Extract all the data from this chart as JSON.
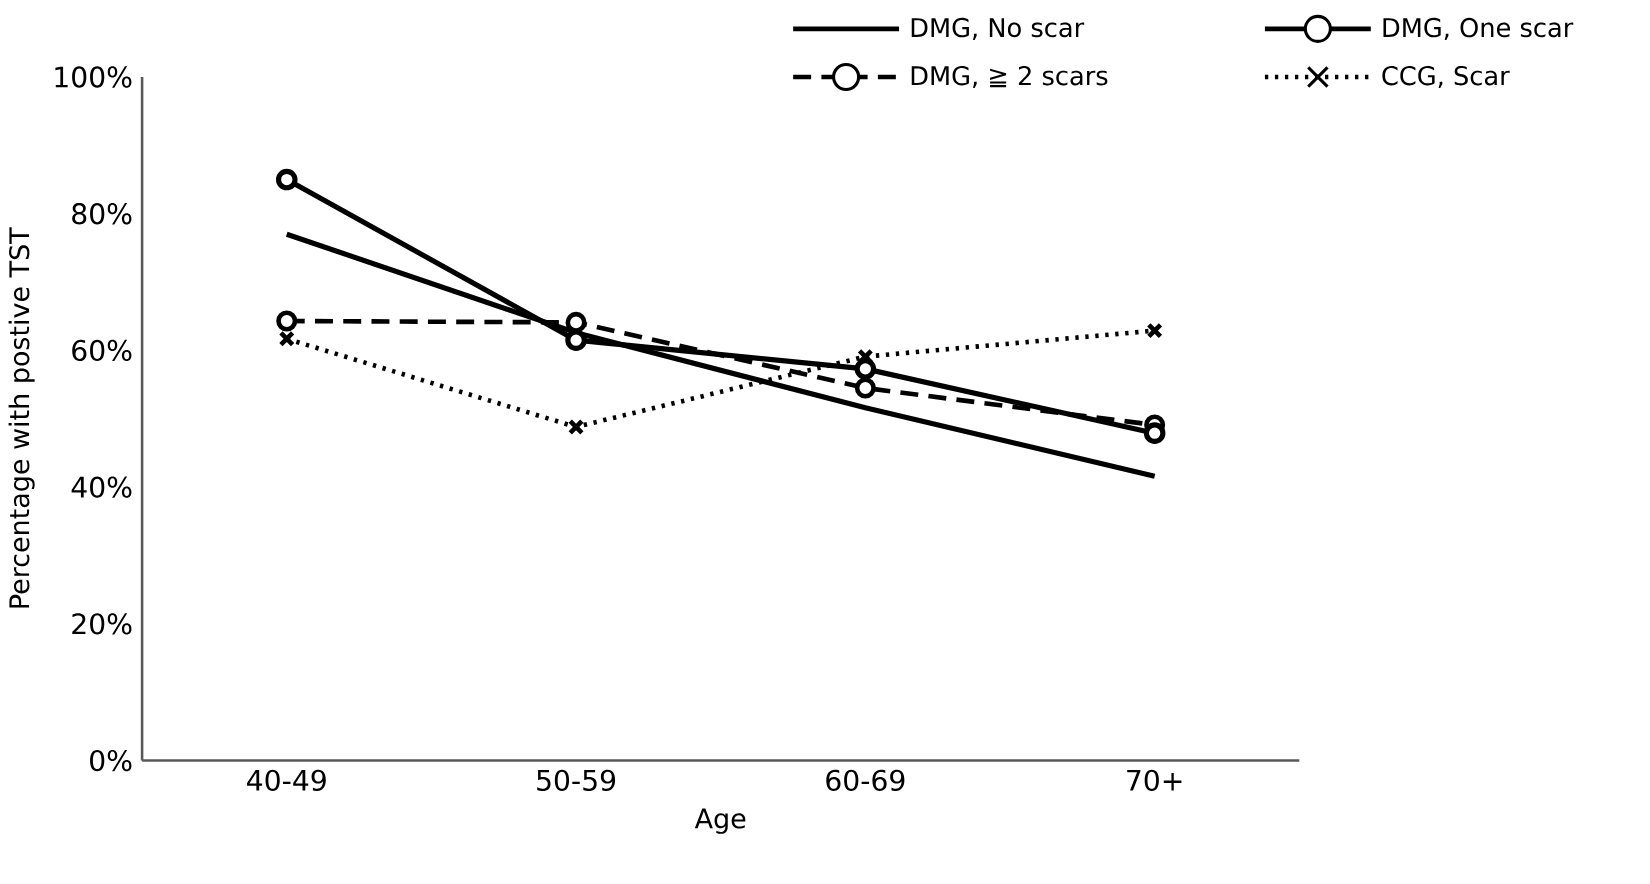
{
  "chart_data": {
    "type": "line",
    "xlabel": "Age",
    "ylabel": "Percentage with postive TST",
    "categories": [
      "40-49",
      "50-59",
      "60-69",
      "70+"
    ],
    "series": [
      {
        "name": "DMG, No scar",
        "color": "#000000",
        "marker": "none",
        "line_style": "solid",
        "values": [
          77,
          62.6,
          51.6,
          41.6
        ]
      },
      {
        "name": "DMG, One scar",
        "color": "#000000",
        "marker": "circle",
        "line_style": "solid",
        "values": [
          85,
          61.5,
          57.3,
          47.9
        ]
      },
      {
        "name": "DMG, ≧ 2 scars",
        "color": "#000000",
        "marker": "circle",
        "line_style": "dashed",
        "values": [
          64.3,
          64.1,
          54.5,
          49.1
        ]
      },
      {
        "name": "CCG, Scar",
        "color": "#000000",
        "marker": "cross",
        "line_style": "dotted",
        "values": [
          61.7,
          48.8,
          59.1,
          62.9
        ]
      }
    ],
    "ylim": [
      0,
      100
    ],
    "yticks": [
      {
        "value": 0,
        "label": "0%"
      },
      {
        "value": 20,
        "label": "20%"
      },
      {
        "value": 40,
        "label": "40%"
      },
      {
        "value": 60,
        "label": "60%"
      },
      {
        "value": 80,
        "label": "80%"
      },
      {
        "value": 100,
        "label": "100%"
      }
    ],
    "grid": false,
    "legend": "top right"
  }
}
